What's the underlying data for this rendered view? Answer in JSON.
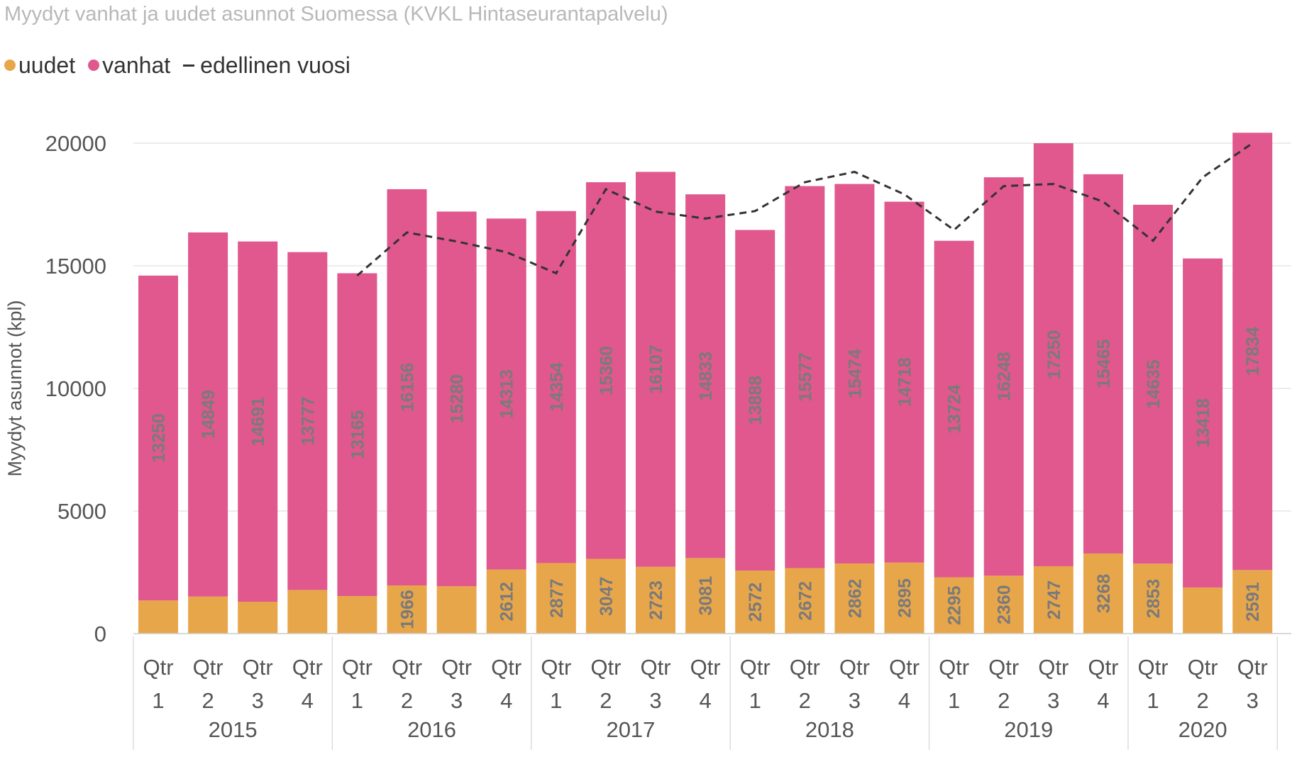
{
  "title": "Myydyt vanhat ja uudet asunnot Suomessa (KVKL Hintaseurantapalvelu)",
  "legend": {
    "items": [
      {
        "label": "uudet",
        "color": "#E8A64A",
        "shape": "dot"
      },
      {
        "label": "vanhat",
        "color": "#E0588D",
        "shape": "dot"
      },
      {
        "label": "edellinen vuosi",
        "color": "#333333",
        "shape": "dash"
      }
    ]
  },
  "chart_data": {
    "type": "bar",
    "stacked": true,
    "ylabel": "Myydyt asunnot (kpl)",
    "ylim": [
      0,
      21000
    ],
    "yticks": [
      0,
      5000,
      10000,
      15000,
      20000
    ],
    "grid": true,
    "legend_position": "top-left",
    "years": [
      "2015",
      "2016",
      "2017",
      "2018",
      "2019",
      "2020"
    ],
    "categories": [
      {
        "year": "2015",
        "quarter": "Qtr 1"
      },
      {
        "year": "2015",
        "quarter": "Qtr 2"
      },
      {
        "year": "2015",
        "quarter": "Qtr 3"
      },
      {
        "year": "2015",
        "quarter": "Qtr 4"
      },
      {
        "year": "2016",
        "quarter": "Qtr 1"
      },
      {
        "year": "2016",
        "quarter": "Qtr 2"
      },
      {
        "year": "2016",
        "quarter": "Qtr 3"
      },
      {
        "year": "2016",
        "quarter": "Qtr 4"
      },
      {
        "year": "2017",
        "quarter": "Qtr 1"
      },
      {
        "year": "2017",
        "quarter": "Qtr 2"
      },
      {
        "year": "2017",
        "quarter": "Qtr 3"
      },
      {
        "year": "2017",
        "quarter": "Qtr 4"
      },
      {
        "year": "2018",
        "quarter": "Qtr 1"
      },
      {
        "year": "2018",
        "quarter": "Qtr 2"
      },
      {
        "year": "2018",
        "quarter": "Qtr 3"
      },
      {
        "year": "2018",
        "quarter": "Qtr 4"
      },
      {
        "year": "2019",
        "quarter": "Qtr 1"
      },
      {
        "year": "2019",
        "quarter": "Qtr 2"
      },
      {
        "year": "2019",
        "quarter": "Qtr 3"
      },
      {
        "year": "2019",
        "quarter": "Qtr 4"
      },
      {
        "year": "2020",
        "quarter": "Qtr 1"
      },
      {
        "year": "2020",
        "quarter": "Qtr 2"
      },
      {
        "year": "2020",
        "quarter": "Qtr 3"
      }
    ],
    "series": [
      {
        "name": "uudet",
        "color": "#E8A64A",
        "values": [
          1350,
          1510,
          1300,
          1780,
          1530,
          1966,
          1930,
          2612,
          2877,
          3047,
          2723,
          3081,
          2572,
          2672,
          2862,
          2895,
          2295,
          2360,
          2747,
          3268,
          2853,
          1880,
          2591
        ],
        "labels": [
          null,
          null,
          null,
          null,
          null,
          "1966",
          null,
          "2612",
          "2877",
          "3047",
          "2723",
          "3081",
          "2572",
          "2672",
          "2862",
          "2895",
          "2295",
          "2360",
          "2747",
          "3268",
          "2853",
          null,
          "2591"
        ]
      },
      {
        "name": "vanhat",
        "color": "#E0588D",
        "values": [
          13250,
          14849,
          14691,
          13777,
          13165,
          16156,
          15280,
          14313,
          14354,
          15360,
          16107,
          14833,
          13888,
          15577,
          15474,
          14718,
          13724,
          16248,
          17250,
          15465,
          14635,
          13418,
          17834
        ],
        "labels": [
          "13250",
          "14849",
          "14691",
          "13777",
          "13165",
          "16156",
          "15280",
          "14313",
          "14354",
          "15360",
          "16107",
          "14833",
          "13888",
          "15577",
          "15474",
          "14718",
          "13724",
          "16248",
          "17250",
          "15465",
          "14635",
          "13418",
          "17834"
        ]
      },
      {
        "name": "edellinen vuosi",
        "type": "line",
        "style": "dashed",
        "color": "#333333",
        "values": [
          null,
          null,
          null,
          null,
          14600,
          16359,
          15991,
          15557,
          14695,
          18122,
          17210,
          16925,
          17231,
          18407,
          18830,
          17914,
          16460,
          18249,
          18336,
          17613,
          16019,
          18608,
          19997
        ]
      }
    ]
  }
}
